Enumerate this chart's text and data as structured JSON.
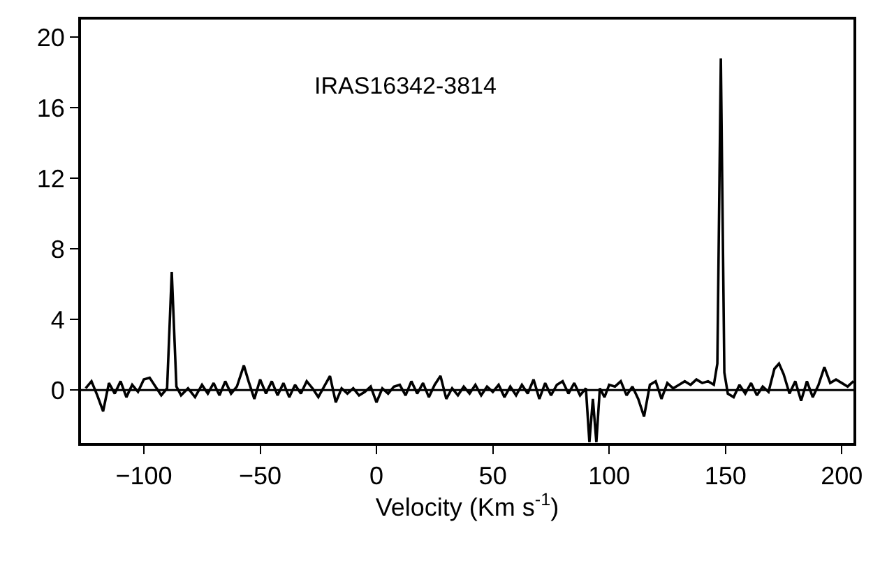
{
  "chart_data": {
    "type": "line",
    "xlabel": "Velocity (Km s$^{-1}$)",
    "annotations": [
      "IRAS16342-3814"
    ],
    "xlim": [
      -127,
      205
    ],
    "ylim": [
      -3,
      21
    ],
    "xticks": [
      -100,
      -50,
      0,
      50,
      100,
      150,
      200
    ],
    "yticks": [
      0,
      4,
      8,
      12,
      16,
      20
    ],
    "ref_lines": [
      {
        "axis": "y",
        "value": 0,
        "color": "#000000"
      }
    ],
    "series": [
      {
        "color": "#000000",
        "x": [
          -125,
          -122.5,
          -120,
          -117.5,
          -115,
          -112.5,
          -110,
          -107.5,
          -105,
          -102.5,
          -100,
          -97.5,
          -95,
          -92.5,
          -90,
          -88,
          -86,
          -84,
          -81,
          -78,
          -75,
          -72.5,
          -70,
          -67.5,
          -65,
          -62.5,
          -60,
          -57,
          -55,
          -52.5,
          -50,
          -47.5,
          -45,
          -42.5,
          -40,
          -37.5,
          -35,
          -32.5,
          -30,
          -27.5,
          -25,
          -22.5,
          -20,
          -17.5,
          -15,
          -12.5,
          -10,
          -7.5,
          -5,
          -2.5,
          0,
          2.5,
          5,
          7.5,
          10,
          12.5,
          15,
          17.5,
          20,
          22.5,
          25,
          27.5,
          30,
          32.5,
          35,
          37.5,
          40,
          42.5,
          45,
          47.5,
          50,
          52.5,
          55,
          57.5,
          60,
          62.5,
          65,
          67.5,
          70,
          72.5,
          75,
          77.5,
          80,
          82.5,
          85,
          87.5,
          90,
          91.5,
          93,
          94.5,
          96,
          98,
          100,
          102.5,
          105,
          107.5,
          110,
          112.5,
          115,
          117.5,
          120,
          122.5,
          125,
          127.5,
          130,
          132.5,
          135,
          137.5,
          140,
          142.5,
          145,
          146.5,
          148,
          149.5,
          151,
          153.5,
          156,
          158.5,
          161,
          163.5,
          166,
          168.5,
          171,
          173,
          175,
          177.5,
          180,
          182.5,
          185,
          187.5,
          190,
          192.5,
          195,
          197.5,
          200,
          202.5,
          205
        ],
        "values": [
          0.1,
          0.5,
          -0.3,
          -1.2,
          0.4,
          -0.2,
          0.5,
          -0.4,
          0.3,
          -0.1,
          0.6,
          0.7,
          0.2,
          -0.3,
          0.1,
          6.7,
          0.2,
          -0.3,
          0.1,
          -0.4,
          0.3,
          -0.2,
          0.4,
          -0.3,
          0.5,
          -0.2,
          0.2,
          1.4,
          0.5,
          -0.5,
          0.6,
          -0.2,
          0.5,
          -0.3,
          0.4,
          -0.4,
          0.3,
          -0.2,
          0.5,
          0.1,
          -0.4,
          0.2,
          0.8,
          -0.7,
          0.1,
          -0.2,
          0.1,
          -0.3,
          -0.1,
          0.2,
          -0.7,
          0.1,
          -0.2,
          0.2,
          0.3,
          -0.3,
          0.5,
          -0.2,
          0.4,
          -0.4,
          0.3,
          0.8,
          -0.5,
          0.1,
          -0.3,
          0.2,
          -0.2,
          0.3,
          -0.3,
          0.2,
          -0.1,
          0.3,
          -0.4,
          0.2,
          -0.3,
          0.3,
          -0.2,
          0.6,
          -0.5,
          0.4,
          -0.3,
          0.3,
          0.5,
          -0.2,
          0.4,
          -0.3,
          0.1,
          -2.95,
          -0.5,
          -2.95,
          0.1,
          -0.4,
          0.3,
          0.2,
          0.5,
          -0.3,
          0.2,
          -0.5,
          -1.5,
          0.3,
          0.5,
          -0.5,
          0.4,
          0.1,
          0.3,
          0.5,
          0.3,
          0.6,
          0.4,
          0.5,
          0.3,
          1.5,
          18.8,
          1.0,
          -0.2,
          -0.4,
          0.3,
          -0.2,
          0.4,
          -0.3,
          0.2,
          -0.1,
          1.2,
          1.5,
          0.9,
          -0.2,
          0.5,
          -0.6,
          0.5,
          -0.4,
          0.3,
          1.3,
          0.4,
          0.6,
          0.4,
          0.2,
          0.5
        ]
      }
    ]
  }
}
